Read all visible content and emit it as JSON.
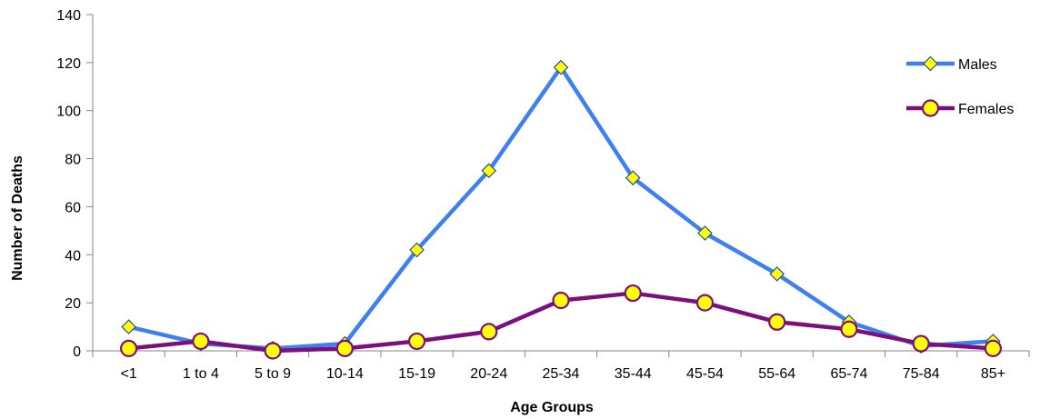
{
  "chart_data": {
    "type": "line",
    "title": "",
    "xlabel": "Age Groups",
    "ylabel": "Number of Deaths",
    "categories": [
      "<1",
      "1 to 4",
      "5 to 9",
      "10-14",
      "15-19",
      "20-24",
      "25-34",
      "35-44",
      "45-54",
      "55-64",
      "65-74",
      "75-84",
      "85+"
    ],
    "series": [
      {
        "name": "Males",
        "values": [
          10,
          3,
          1,
          3,
          42,
          75,
          118,
          72,
          49,
          32,
          12,
          2,
          4
        ],
        "color": "#3f7fef",
        "marker": "diamond",
        "marker_color": "#ffff00"
      },
      {
        "name": "Females",
        "values": [
          1,
          4,
          0,
          1,
          4,
          8,
          21,
          24,
          20,
          12,
          9,
          3,
          1
        ],
        "color": "#7b0f7b",
        "marker": "circle",
        "marker_color": "#ffff00"
      }
    ],
    "ylim": [
      0,
      140
    ],
    "yticks": [
      0,
      20,
      40,
      60,
      80,
      100,
      120,
      140
    ],
    "grid": false,
    "legend_position": "right"
  }
}
